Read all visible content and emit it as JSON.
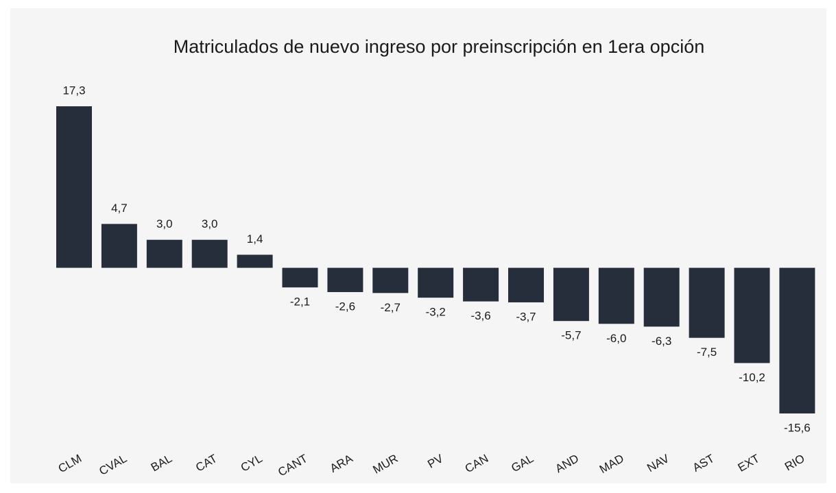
{
  "chart_data": {
    "type": "bar",
    "title": "Matriculados de nuevo ingreso por preinscripción en 1era opción",
    "categories": [
      "CLM",
      "CVAL",
      "BAL",
      "CAT",
      "CYL",
      "CANT",
      "ARA",
      "MUR",
      "PV",
      "CAN",
      "GAL",
      "AND",
      "MAD",
      "NAV",
      "AST",
      "EXT",
      "RIO"
    ],
    "values": [
      17.3,
      4.7,
      3.0,
      3.0,
      1.4,
      -2.1,
      -2.6,
      -2.7,
      -3.2,
      -3.6,
      -3.7,
      -5.7,
      -6.0,
      -6.3,
      -7.5,
      -10.2,
      -15.6
    ],
    "value_labels": [
      "17,3",
      "4,7",
      "3,0",
      "3,0",
      "1,4",
      "-2,1",
      "-2,6",
      "-2,7",
      "-3,2",
      "-3,6",
      "-3,7",
      "-5,7",
      "-6,0",
      "-6,3",
      "-7,5",
      "-10,2",
      "-15,6"
    ],
    "color": "#262e3b"
  }
}
